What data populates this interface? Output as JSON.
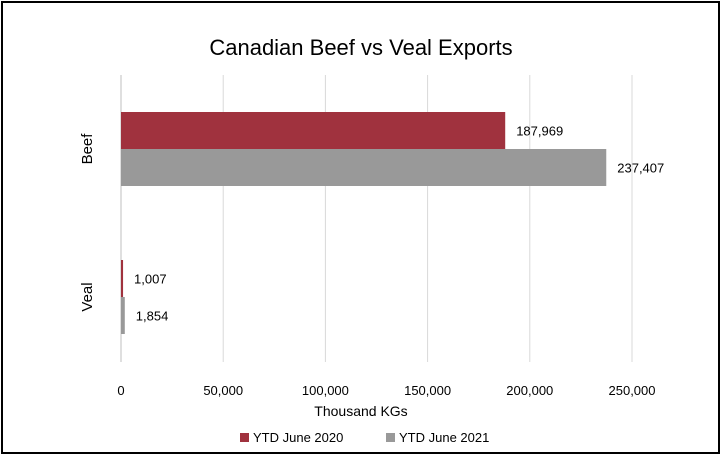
{
  "chart_data": {
    "type": "bar",
    "orientation": "horizontal",
    "title": "Canadian Beef vs Veal Exports",
    "xlabel": "Thousand KGs",
    "ylabel": "",
    "categories": [
      "Beef",
      "Veal"
    ],
    "series": [
      {
        "name": "YTD June 2020",
        "color": "#a0323e",
        "values": [
          187969,
          1007
        ],
        "labels": [
          "187,969",
          "1,007"
        ]
      },
      {
        "name": "YTD June 2021",
        "color": "#999999",
        "values": [
          237407,
          1854
        ],
        "labels": [
          "237,407",
          "1,854"
        ]
      }
    ],
    "xlim": [
      0,
      250000
    ],
    "xticks": [
      0,
      50000,
      100000,
      150000,
      200000,
      250000
    ],
    "xtick_labels": [
      "0",
      "50,000",
      "100,000",
      "150,000",
      "200,000",
      "250,000"
    ],
    "grid": "vertical",
    "legend": "bottom"
  }
}
